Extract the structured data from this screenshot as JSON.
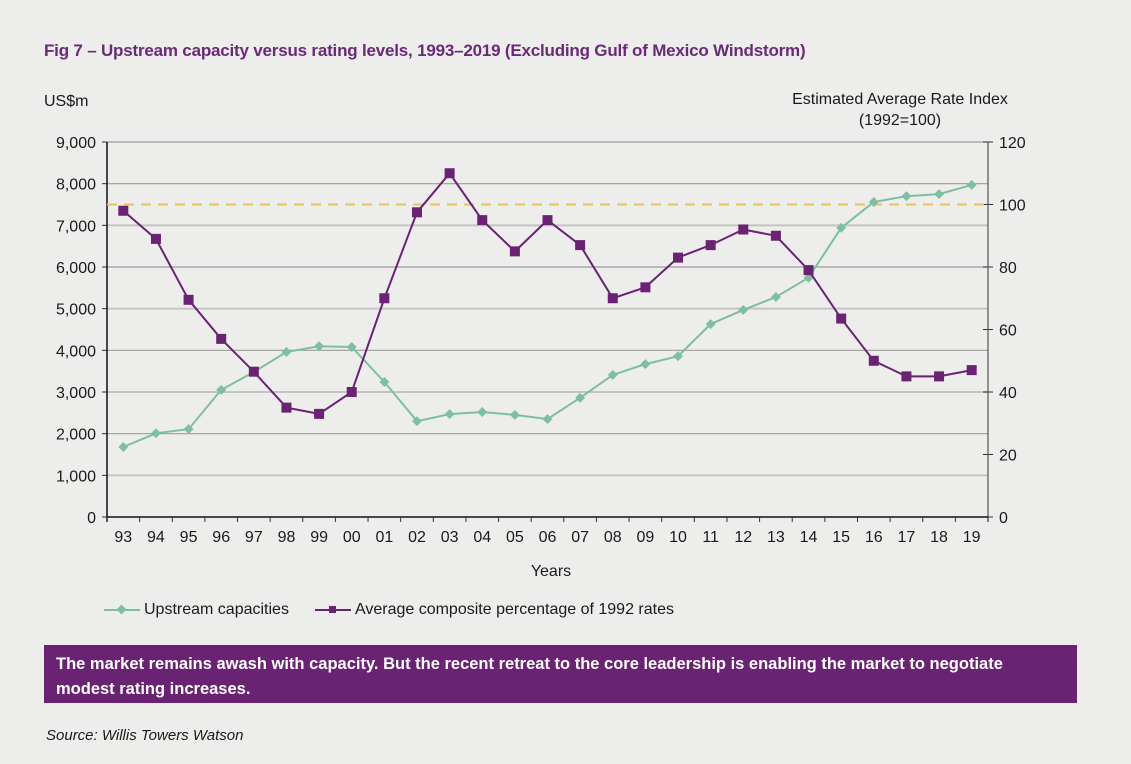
{
  "title": "Fig 7 – Upstream capacity versus rating levels, 1993–2019 (Excluding Gulf of Mexico Windstorm)",
  "callout": "The market remains awash with capacity. But the recent retreat to the core leadership is enabling the market to negotiate modest rating increases.",
  "source": "Source:  Willis Towers Watson",
  "colors": {
    "title": "#6a2a77",
    "capacity": "#7dbfa0",
    "rate": "#6a2273",
    "reference": "#e8c45a",
    "callout_bg": "#6a2273",
    "background": "#ededec"
  },
  "chart_data": {
    "type": "line",
    "title": "Fig 7 – Upstream capacity versus rating levels, 1993–2019 (Excluding Gulf of Mexico Windstorm)",
    "xlabel": "Years",
    "ylabel": "US$m",
    "y2label": "Estimated Average Rate Index (1992=100)",
    "ylim": [
      0,
      9000
    ],
    "y2lim": [
      0,
      120
    ],
    "yticks": [
      "0",
      "1,000",
      "2,000",
      "3,000",
      "4,000",
      "5,000",
      "6,000",
      "7,000",
      "8,000",
      "9,000"
    ],
    "ytick_values": [
      0,
      1000,
      2000,
      3000,
      4000,
      5000,
      6000,
      7000,
      8000,
      9000
    ],
    "y2ticks": [
      "0",
      "20",
      "40",
      "60",
      "80",
      "100",
      "120"
    ],
    "y2tick_values": [
      0,
      20,
      40,
      60,
      80,
      100,
      120
    ],
    "grid": true,
    "legend_position": "bottom",
    "categories": [
      "93",
      "94",
      "95",
      "96",
      "97",
      "98",
      "99",
      "00",
      "01",
      "02",
      "03",
      "04",
      "05",
      "06",
      "07",
      "08",
      "09",
      "10",
      "11",
      "12",
      "13",
      "14",
      "15",
      "16",
      "17",
      "18",
      "19"
    ],
    "series": [
      {
        "name": "Upstream capacities",
        "axis": "left",
        "marker": "diamond",
        "values": [
          1680,
          2010,
          2110,
          3050,
          3480,
          3960,
          4100,
          4080,
          3240,
          2300,
          2470,
          2520,
          2450,
          2350,
          2860,
          3410,
          3670,
          3860,
          4630,
          4970,
          5280,
          5740,
          6940,
          7560,
          7700,
          7750,
          7970
        ]
      },
      {
        "name": "Average composite percentage of 1992 rates",
        "axis": "right",
        "marker": "square",
        "values": [
          98,
          89,
          69.5,
          57,
          46.5,
          35,
          33,
          40,
          70,
          97.5,
          110,
          95,
          85,
          95,
          87,
          70,
          73.5,
          83,
          87,
          92,
          90,
          79,
          63.5,
          50,
          45,
          45,
          47
        ]
      }
    ],
    "reference_line": {
      "axis": "right",
      "value": 100,
      "style": "dashed"
    }
  }
}
